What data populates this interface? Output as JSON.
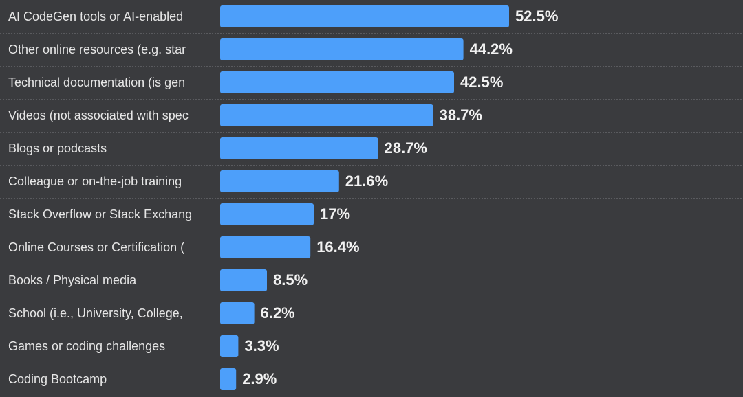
{
  "chart_data": {
    "type": "bar",
    "orientation": "horizontal",
    "categories": [
      "AI CodeGen tools or AI-enabled",
      "Other online resources (e.g. star",
      "Technical documentation (is gen",
      "Videos (not associated with spec",
      "Blogs or podcasts",
      "Colleague or on-the-job training",
      "Stack Overflow or Stack Exchang",
      "Online Courses or Certification (",
      "Books / Physical media",
      "School (i.e., University, College,",
      "Games or coding challenges",
      "Coding Bootcamp"
    ],
    "values": [
      52.5,
      44.2,
      42.5,
      38.7,
      28.7,
      21.6,
      17,
      16.4,
      8.5,
      6.2,
      3.3,
      2.9
    ],
    "value_labels": [
      "52.5%",
      "44.2%",
      "42.5%",
      "38.7%",
      "28.7%",
      "21.6%",
      "17%",
      "16.4%",
      "8.5%",
      "6.2%",
      "3.3%",
      "2.9%"
    ],
    "color": "#4d9ffa"
  }
}
